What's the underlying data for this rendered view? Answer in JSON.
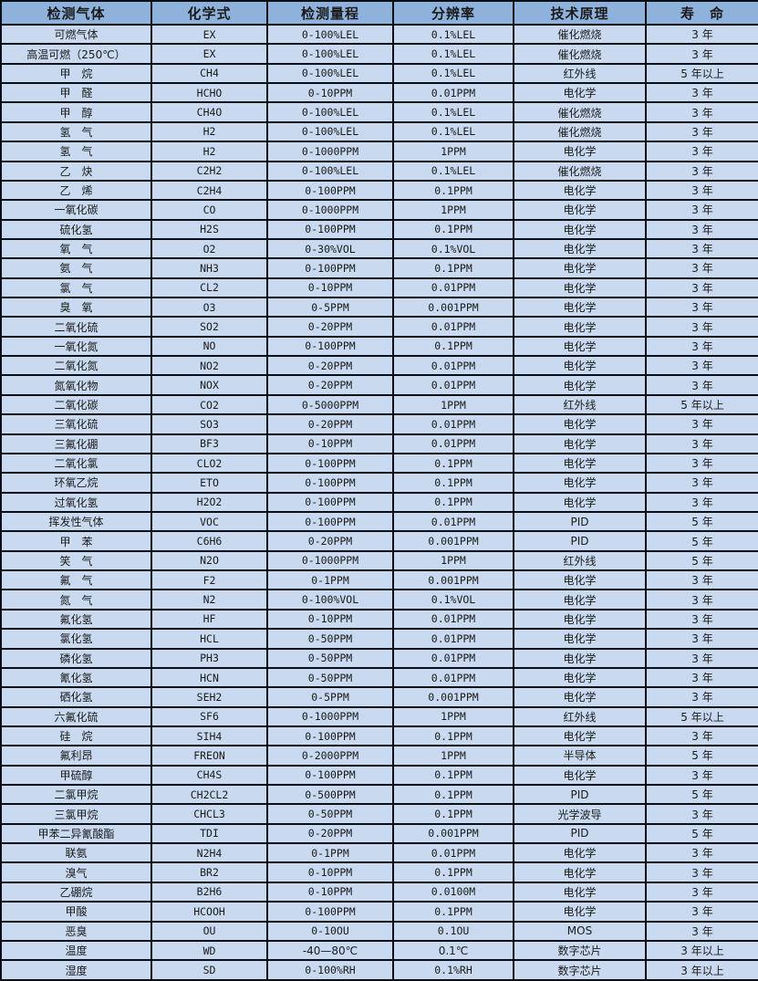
{
  "colors": {
    "header_bg": "#8fb2dd",
    "row_bg": "#c9daf0",
    "border": "#0a0f16",
    "text": "#1a1a1a"
  },
  "chart_data": {
    "type": "table",
    "title": "",
    "columns": [
      "检测气体",
      "化学式",
      "检测量程",
      "分辨率",
      "技术原理",
      "寿　命"
    ],
    "rows": [
      [
        "可燃气体",
        "EX",
        "0-100%LEL",
        "0.1%LEL",
        "催化燃烧",
        "3 年"
      ],
      [
        "高温可燃（250℃）",
        "EX",
        "0-100%LEL",
        "0.1%LEL",
        "催化燃烧",
        "3 年"
      ],
      [
        "甲　烷",
        "CH4",
        "0-100%LEL",
        "0.1%LEL",
        "红外线",
        "5 年以上"
      ],
      [
        "甲　醛",
        "HCHO",
        "0-10PPM",
        "0.01PPM",
        "电化学",
        "3 年"
      ],
      [
        "甲　醇",
        "CH4O",
        "0-100%LEL",
        "0.1%LEL",
        "催化燃烧",
        "3 年"
      ],
      [
        "氢　气",
        "H2",
        "0-100%LEL",
        "0.1%LEL",
        "催化燃烧",
        "3 年"
      ],
      [
        "氢　气",
        "H2",
        "0-1000PPM",
        "1PPM",
        "电化学",
        "3 年"
      ],
      [
        "乙　炔",
        "C2H2",
        "0-100%LEL",
        "0.1%LEL",
        "催化燃烧",
        "3 年"
      ],
      [
        "乙　烯",
        "C2H4",
        "0-100PPM",
        "0.1PPM",
        "电化学",
        "3 年"
      ],
      [
        "一氧化碳",
        "CO",
        "0-1000PPM",
        "1PPM",
        "电化学",
        "3 年"
      ],
      [
        "硫化氢",
        "H2S",
        "0-100PPM",
        "0.1PPM",
        "电化学",
        "3 年"
      ],
      [
        "氧　气",
        "O2",
        "0-30%VOL",
        "0.1%VOL",
        "电化学",
        "3 年"
      ],
      [
        "氨　气",
        "NH3",
        "0-100PPM",
        "0.1PPM",
        "电化学",
        "3 年"
      ],
      [
        "氯　气",
        "CL2",
        "0-10PPM",
        "0.01PPM",
        "电化学",
        "3 年"
      ],
      [
        "臭　氧",
        "O3",
        "0-5PPM",
        "0.001PPM",
        "电化学",
        "3 年"
      ],
      [
        "二氧化硫",
        "SO2",
        "0-20PPM",
        "0.01PPM",
        "电化学",
        "3 年"
      ],
      [
        "一氧化氮",
        "NO",
        "0-100PPM",
        "0.1PPM",
        "电化学",
        "3 年"
      ],
      [
        "二氧化氮",
        "NO2",
        "0-20PPM",
        "0.01PPM",
        "电化学",
        "3 年"
      ],
      [
        "氮氧化物",
        "NOX",
        "0-20PPM",
        "0.01PPM",
        "电化学",
        "3 年"
      ],
      [
        "二氧化碳",
        "CO2",
        "0-5000PPM",
        "1PPM",
        "红外线",
        "5 年以上"
      ],
      [
        "三氧化硫",
        "SO3",
        "0-20PPM",
        "0.01PPM",
        "电化学",
        "3 年"
      ],
      [
        "三氟化硼",
        "BF3",
        "0-10PPM",
        "0.01PPM",
        "电化学",
        "3 年"
      ],
      [
        "二氧化氯",
        "CLO2",
        "0-100PPM",
        "0.1PPM",
        "电化学",
        "3 年"
      ],
      [
        "环氧乙烷",
        "ETO",
        "0-100PPM",
        "0.1PPM",
        "电化学",
        "3 年"
      ],
      [
        "过氧化氢",
        "H2O2",
        "0-100PPM",
        "0.1PPM",
        "电化学",
        "3 年"
      ],
      [
        "挥发性气体",
        "VOC",
        "0-100PPM",
        "0.01PPM",
        "PID",
        "5 年"
      ],
      [
        "甲　苯",
        "C6H6",
        "0-20PPM",
        "0.001PPM",
        "PID",
        "5 年"
      ],
      [
        "笑　气",
        "N2O",
        "0-1000PPM",
        "1PPM",
        "红外线",
        "5 年"
      ],
      [
        "氟　气",
        "F2",
        "0-1PPM",
        "0.001PPM",
        "电化学",
        "3 年"
      ],
      [
        "氮　气",
        "N2",
        "0-100%VOL",
        "0.1%VOL",
        "电化学",
        "3 年"
      ],
      [
        "氟化氢",
        "HF",
        "0-10PPM",
        "0.01PPM",
        "电化学",
        "3 年"
      ],
      [
        "氯化氢",
        "HCL",
        "0-50PPM",
        "0.01PPM",
        "电化学",
        "3 年"
      ],
      [
        "磷化氢",
        "PH3",
        "0-50PPM",
        "0.01PPM",
        "电化学",
        "3 年"
      ],
      [
        "氰化氢",
        "HCN",
        "0-50PPM",
        "0.01PPM",
        "电化学",
        "3 年"
      ],
      [
        "硒化氢",
        "SEH2",
        "0-5PPM",
        "0.001PPM",
        "电化学",
        "3 年"
      ],
      [
        "六氟化硫",
        "SF6",
        "0-1000PPM",
        "1PPM",
        "红外线",
        "5 年以上"
      ],
      [
        "硅　烷",
        "SIH4",
        "0-100PPM",
        "0.1PPM",
        "电化学",
        "3 年"
      ],
      [
        "氟利昂",
        "FREON",
        "0-2000PPM",
        "1PPM",
        "半导体",
        "5 年"
      ],
      [
        "甲硫醇",
        "CH4S",
        "0-100PPM",
        "0.1PPM",
        "电化学",
        "3 年"
      ],
      [
        "二氯甲烷",
        "CH2CL2",
        "0-500PPM",
        "0.1PPM",
        "PID",
        "5 年"
      ],
      [
        "三氯甲烷",
        "CHCL3",
        "0-50PPM",
        "0.1PPM",
        "光学波导",
        "3 年"
      ],
      [
        "甲苯二异氰酸酯",
        "TDI",
        "0-20PPM",
        "0.001PPM",
        "PID",
        "5 年"
      ],
      [
        "联氨",
        "N2H4",
        "0-1PPM",
        "0.01PPM",
        "电化学",
        "3 年"
      ],
      [
        "溴气",
        "BR2",
        "0-10PPM",
        "0.1PPM",
        "电化学",
        "3 年"
      ],
      [
        "乙硼烷",
        "B2H6",
        "0-10PPM",
        "0.0100M",
        "电化学",
        "3 年"
      ],
      [
        "甲酸",
        "HCOOH",
        "0-100PPM",
        "0.1PPM",
        "电化学",
        "3 年"
      ],
      [
        "恶臭",
        "OU",
        "0-10OU",
        "0.1OU",
        "MOS",
        "3 年"
      ],
      [
        "温度",
        "WD",
        "-40—80℃",
        "0.1℃",
        "数字芯片",
        "3 年以上"
      ],
      [
        "湿度",
        "SD",
        "0-100%RH",
        "0.1%RH",
        "数字芯片",
        "3 年以上"
      ]
    ]
  }
}
